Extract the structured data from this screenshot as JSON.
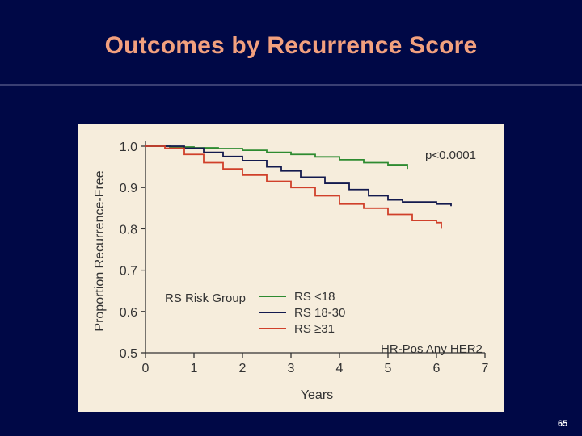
{
  "slide": {
    "title": "Outcomes by Recurrence Score",
    "page_number": "65",
    "colors": {
      "background": "#000846",
      "title": "#f2a07e",
      "panel": "#f6eddc"
    }
  },
  "chart_data": {
    "type": "line",
    "title": "",
    "xlabel": "Years",
    "ylabel": "Proportion Recurrence-Free",
    "xlim": [
      0,
      7
    ],
    "ylim": [
      0.5,
      1.0
    ],
    "xticks": [
      "0",
      "1",
      "2",
      "3",
      "4",
      "5",
      "6",
      "7"
    ],
    "yticks": [
      "0.5",
      "0.6",
      "0.7",
      "0.8",
      "0.9",
      "1.0"
    ],
    "grid": false,
    "legend_title": "RS Risk Group",
    "legend_position": "center-left",
    "p_value": "p<0.0001",
    "subgroup_label": "HR-Pos Any HER2",
    "series": [
      {
        "name": "RS <18",
        "color": "#2e8b30",
        "x": [
          0,
          0.5,
          1.0,
          1.5,
          2.0,
          2.5,
          3.0,
          3.5,
          4.0,
          4.5,
          5.0,
          5.4
        ],
        "y": [
          1.0,
          0.998,
          0.996,
          0.994,
          0.99,
          0.985,
          0.98,
          0.974,
          0.967,
          0.96,
          0.955,
          0.945
        ]
      },
      {
        "name": "RS 18-30",
        "color": "#131a4e",
        "x": [
          0,
          0.8,
          1.2,
          1.6,
          2.0,
          2.5,
          2.8,
          3.2,
          3.7,
          4.2,
          4.6,
          5.0,
          5.3,
          6.0,
          6.3
        ],
        "y": [
          1.0,
          0.995,
          0.985,
          0.975,
          0.965,
          0.95,
          0.94,
          0.925,
          0.91,
          0.895,
          0.88,
          0.87,
          0.865,
          0.86,
          0.855
        ]
      },
      {
        "name": "RS ≥31",
        "color": "#d0402a",
        "x": [
          0,
          0.4,
          0.8,
          1.2,
          1.6,
          2.0,
          2.5,
          3.0,
          3.5,
          4.0,
          4.5,
          5.0,
          5.5,
          6.0,
          6.1
        ],
        "y": [
          1.0,
          0.995,
          0.98,
          0.96,
          0.945,
          0.93,
          0.915,
          0.9,
          0.88,
          0.86,
          0.85,
          0.835,
          0.82,
          0.815,
          0.8
        ]
      }
    ]
  }
}
